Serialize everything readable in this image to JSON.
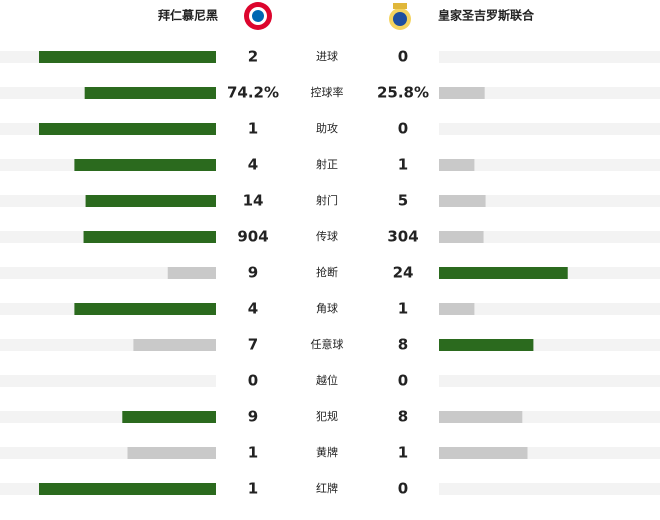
{
  "header": {
    "home_team": "拜仁慕尼黑",
    "away_team": "皇家圣吉罗斯联合"
  },
  "stats": [
    {
      "name": "进球",
      "home": 2,
      "away": 0
    },
    {
      "name": "控球率",
      "home": 74.2,
      "away": 25.8,
      "home_label": "74.2%",
      "away_label": "25.8%"
    },
    {
      "name": "助攻",
      "home": 1,
      "away": 0
    },
    {
      "name": "射正",
      "home": 4,
      "away": 1
    },
    {
      "name": "射门",
      "home": 14,
      "away": 5
    },
    {
      "name": "传球",
      "home": 904,
      "away": 304
    },
    {
      "name": "抢断",
      "home": 9,
      "away": 24
    },
    {
      "name": "角球",
      "home": 4,
      "away": 1
    },
    {
      "name": "任意球",
      "home": 7,
      "away": 8
    },
    {
      "name": "越位",
      "home": 0,
      "away": 0
    },
    {
      "name": "犯规",
      "home": 9,
      "away": 8
    },
    {
      "name": "黄牌",
      "home": 1,
      "away": 1
    },
    {
      "name": "红牌",
      "home": 1,
      "away": 0
    }
  ]
}
